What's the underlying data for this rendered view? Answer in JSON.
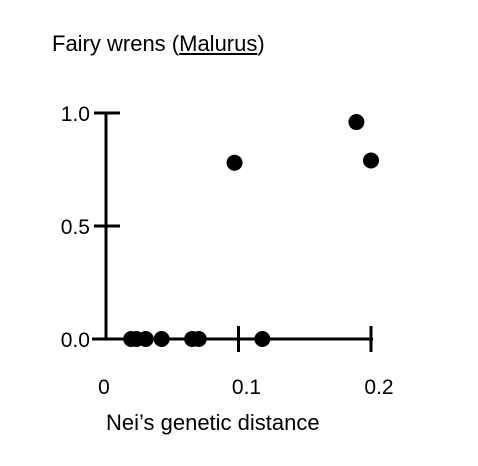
{
  "chart_data": {
    "type": "scatter",
    "title_prefix": "Fairy wrens (",
    "title_genus": "Malurus",
    "title_suffix": ")",
    "xlabel": "Nei’s genetic distance",
    "ylabel": "",
    "xlim": [
      0,
      0.2
    ],
    "ylim": [
      0,
      1.0
    ],
    "x_ticks": [
      {
        "value": 0,
        "label": "0"
      },
      {
        "value": 0.1,
        "label": "0.1"
      },
      {
        "value": 0.2,
        "label": "0.2"
      }
    ],
    "y_ticks": [
      {
        "value": 0.0,
        "label": "0.0"
      },
      {
        "value": 0.5,
        "label": "0.5"
      },
      {
        "value": 1.0,
        "label": "1.0"
      }
    ],
    "points": [
      {
        "x": 0.019,
        "y": 0.0
      },
      {
        "x": 0.023,
        "y": 0.0
      },
      {
        "x": 0.03,
        "y": 0.0
      },
      {
        "x": 0.042,
        "y": 0.0
      },
      {
        "x": 0.065,
        "y": 0.0
      },
      {
        "x": 0.07,
        "y": 0.0
      },
      {
        "x": 0.097,
        "y": 0.78
      },
      {
        "x": 0.118,
        "y": 0.0
      },
      {
        "x": 0.189,
        "y": 0.96
      },
      {
        "x": 0.2,
        "y": 0.79
      }
    ],
    "marker_color": "#000000",
    "grid": false
  }
}
